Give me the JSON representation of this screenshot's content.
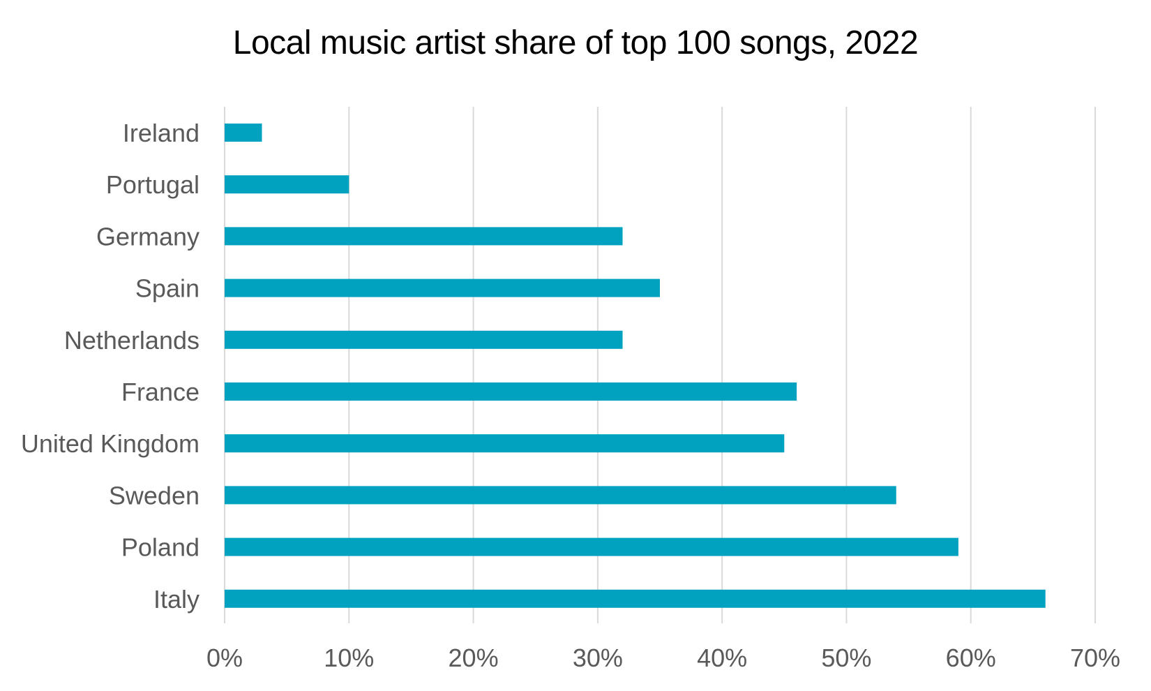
{
  "chart_data": {
    "type": "bar",
    "orientation": "horizontal",
    "title": "Local music artist share of top 100 songs, 2022",
    "xlabel": "",
    "ylabel": "",
    "categories": [
      "Ireland",
      "Portugal",
      "Germany",
      "Spain",
      "Netherlands",
      "France",
      "United Kingdom",
      "Sweden",
      "Poland",
      "Italy"
    ],
    "values": [
      3,
      10,
      32,
      35,
      32,
      46,
      45,
      54,
      59,
      66
    ],
    "xlim": [
      0,
      70
    ],
    "xticks": [
      0,
      10,
      20,
      30,
      40,
      50,
      60,
      70
    ],
    "tick_format": "%",
    "grid": "vertical",
    "legend": "none",
    "bar_color": "#00A2C0",
    "grid_color": "#D9D9D9",
    "label_color": "#595959"
  }
}
